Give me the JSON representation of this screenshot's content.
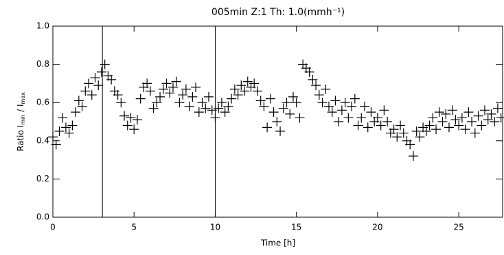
{
  "chart_data": {
    "type": "scatter",
    "title": "005min Z:1 Th: 1.0(mmh⁻¹)",
    "xlabel": "Time [h]",
    "ylabel": [
      "Ratio I",
      "min",
      " / I",
      "max"
    ],
    "xlim": [
      0,
      27.7
    ],
    "ylim": [
      0,
      1.0
    ],
    "xticks": [
      0,
      5,
      10,
      15,
      20,
      25
    ],
    "yticks": [
      {
        "value": 0,
        "label": "0.0"
      },
      0.2,
      0.4,
      0.6,
      0.8,
      {
        "value": 1,
        "label": "1.0"
      }
    ],
    "vlines": [
      3.05,
      10
    ],
    "color": "#000000",
    "x": [
      0,
      0.2,
      0.4,
      0.6,
      0.8,
      1,
      1.2,
      1.4,
      1.6,
      1.8,
      2,
      2.2,
      2.4,
      2.6,
      2.8,
      3,
      3.2,
      3.4,
      3.6,
      3.8,
      4,
      4.2,
      4.4,
      4.6,
      4.8,
      5,
      5.2,
      5.4,
      5.6,
      5.8,
      6,
      6.2,
      6.4,
      6.6,
      6.8,
      7,
      7.2,
      7.4,
      7.6,
      7.8,
      8,
      8.2,
      8.4,
      8.6,
      8.8,
      9,
      9.2,
      9.4,
      9.6,
      9.8,
      10,
      10.2,
      10.4,
      10.6,
      10.8,
      11,
      11.2,
      11.4,
      11.6,
      11.8,
      12,
      12.2,
      12.4,
      12.6,
      12.8,
      13,
      13.2,
      13.4,
      13.6,
      13.8,
      14,
      14.2,
      14.4,
      14.6,
      14.8,
      15,
      15.2,
      15.4,
      15.6,
      15.8,
      16,
      16.2,
      16.4,
      16.6,
      16.8,
      17,
      17.2,
      17.4,
      17.6,
      17.8,
      18,
      18.2,
      18.4,
      18.6,
      18.8,
      19,
      19.2,
      19.4,
      19.6,
      19.8,
      20,
      20.2,
      20.4,
      20.6,
      20.8,
      21,
      21.2,
      21.4,
      21.6,
      21.8,
      22,
      22.2,
      22.4,
      22.6,
      22.8,
      23,
      23.2,
      23.4,
      23.6,
      23.8,
      24,
      24.2,
      24.4,
      24.6,
      24.8,
      25,
      25.2,
      25.4,
      25.6,
      25.8,
      26,
      26.2,
      26.4,
      26.6,
      26.8,
      27,
      27.2,
      27.4,
      27.6
    ],
    "y": [
      0.42,
      0.38,
      0.45,
      0.52,
      0.47,
      0.44,
      0.48,
      0.55,
      0.61,
      0.58,
      0.66,
      0.7,
      0.64,
      0.73,
      0.69,
      0.76,
      0.8,
      0.74,
      0.72,
      0.66,
      0.64,
      0.6,
      0.53,
      0.48,
      0.52,
      0.46,
      0.51,
      0.62,
      0.68,
      0.7,
      0.66,
      0.57,
      0.6,
      0.63,
      0.67,
      0.7,
      0.65,
      0.68,
      0.71,
      0.6,
      0.64,
      0.67,
      0.58,
      0.63,
      0.68,
      0.55,
      0.6,
      0.57,
      0.63,
      0.56,
      0.52,
      0.57,
      0.6,
      0.55,
      0.58,
      0.62,
      0.67,
      0.64,
      0.69,
      0.66,
      0.71,
      0.68,
      0.7,
      0.66,
      0.61,
      0.58,
      0.47,
      0.62,
      0.55,
      0.5,
      0.45,
      0.57,
      0.6,
      0.54,
      0.63,
      0.6,
      0.52,
      0.8,
      0.78,
      0.76,
      0.72,
      0.69,
      0.64,
      0.6,
      0.67,
      0.58,
      0.55,
      0.61,
      0.5,
      0.56,
      0.6,
      0.52,
      0.58,
      0.62,
      0.48,
      0.52,
      0.58,
      0.47,
      0.55,
      0.5,
      0.52,
      0.48,
      0.56,
      0.5,
      0.44,
      0.46,
      0.42,
      0.48,
      0.44,
      0.4,
      0.38,
      0.32,
      0.45,
      0.42,
      0.47,
      0.45,
      0.48,
      0.52,
      0.46,
      0.55,
      0.5,
      0.54,
      0.47,
      0.56,
      0.51,
      0.48,
      0.52,
      0.46,
      0.55,
      0.5,
      0.44,
      0.53,
      0.48,
      0.56,
      0.51,
      0.54,
      0.5,
      0.57,
      0.52
    ]
  }
}
